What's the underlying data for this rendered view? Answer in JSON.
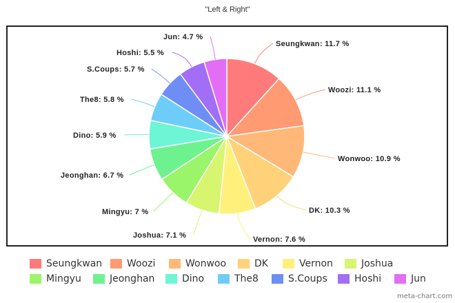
{
  "chart_data": {
    "type": "pie",
    "title": "\"Left & Right\"",
    "categories": [
      "Seungkwan",
      "Woozi",
      "Wonwoo",
      "DK",
      "Vernon",
      "Joshua",
      "Mingyu",
      "Jeonghan",
      "Dino",
      "The8",
      "S.Coups",
      "Hoshi",
      "Jun"
    ],
    "values": [
      11.7,
      11.1,
      10.9,
      10.3,
      7.6,
      7.1,
      7,
      6.7,
      5.9,
      5.8,
      5.7,
      5.5,
      4.7
    ],
    "colors": [
      "#ff7b7b",
      "#ff9a72",
      "#ffb877",
      "#ffd27a",
      "#fff07c",
      "#d8f570",
      "#9af56a",
      "#6ef28f",
      "#6ef5d5",
      "#6ecdf8",
      "#6e8ef5",
      "#a26ef5",
      "#e16ef5"
    ],
    "data_labels": [
      "Seungkwan: 11.7 %",
      "Woozi: 11.1 %",
      "Wonwoo: 10.9 %",
      "DK: 10.3 %",
      "Vernon: 7.6 %",
      "Joshua: 7.1 %",
      "Mingyu: 7 %",
      "Jeonghan: 6.7 %",
      "Dino: 5.9 %",
      "The8: 5.8 %",
      "S.Coups: 5.7 %",
      "Hoshi: 5.5 %",
      "Jun: 4.7 %"
    ],
    "legend_position": "bottom",
    "unit": "%"
  },
  "legend": {
    "items": [
      {
        "label": "Seungkwan",
        "color": "#ff7b7b"
      },
      {
        "label": "Woozi",
        "color": "#ff9a72"
      },
      {
        "label": "Wonwoo",
        "color": "#ffb877"
      },
      {
        "label": "DK",
        "color": "#ffd27a"
      },
      {
        "label": "Vernon",
        "color": "#fff07c"
      },
      {
        "label": "Joshua",
        "color": "#d8f570"
      },
      {
        "label": "Mingyu",
        "color": "#9af56a"
      },
      {
        "label": "Jeonghan",
        "color": "#6ef28f"
      },
      {
        "label": "Dino",
        "color": "#6ef5d5"
      },
      {
        "label": "The8",
        "color": "#6ecdf8"
      },
      {
        "label": "S.Coups",
        "color": "#6e8ef5"
      },
      {
        "label": "Hoshi",
        "color": "#a26ef5"
      },
      {
        "label": "Jun",
        "color": "#e16ef5"
      }
    ]
  },
  "credit": "meta-chart.com"
}
